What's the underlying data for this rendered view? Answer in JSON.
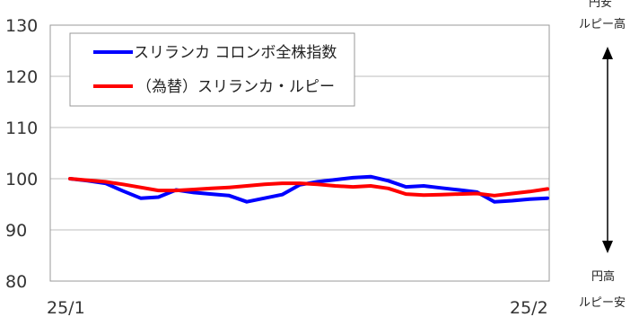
{
  "chart_data": {
    "type": "line",
    "title": "",
    "xlabel": "",
    "ylabel": "",
    "ylim": [
      80,
      130
    ],
    "yticks": [
      80,
      90,
      100,
      110,
      120,
      130
    ],
    "x_tick_labels": [
      "25/1",
      "25/2"
    ],
    "grid": true,
    "legend_position": "top-left",
    "series": [
      {
        "name": "スリランカ コロンボ全株指数",
        "color": "#0000ff",
        "values": [
          100,
          99.6,
          99.1,
          97.6,
          96.2,
          96.4,
          97.8,
          97.3,
          97.0,
          96.7,
          95.5,
          96.2,
          96.9,
          98.8,
          99.4,
          99.8,
          100.2,
          100.4,
          99.6,
          98.4,
          98.6,
          98.2,
          97.8,
          97.4,
          95.5,
          95.7,
          96.0,
          96.2
        ]
      },
      {
        "name": "（為替）スリランカ・ルピー",
        "color": "#ff0000",
        "values": [
          100,
          99.7,
          99.4,
          98.9,
          98.3,
          97.7,
          97.7,
          97.9,
          98.1,
          98.3,
          98.6,
          98.9,
          99.1,
          99.1,
          98.9,
          98.6,
          98.4,
          98.6,
          98.1,
          97.0,
          96.8,
          96.9,
          97.0,
          97.1,
          96.7,
          97.1,
          97.5,
          98.0
        ]
      }
    ]
  },
  "annotations": {
    "top_line1": "円安",
    "top_line2": "ルピー高",
    "bottom_line1": "円高",
    "bottom_line2": "ルピー安"
  },
  "colors": {
    "grid": "#bdbdbd",
    "frame": "#999999",
    "arrow": "#000000"
  }
}
